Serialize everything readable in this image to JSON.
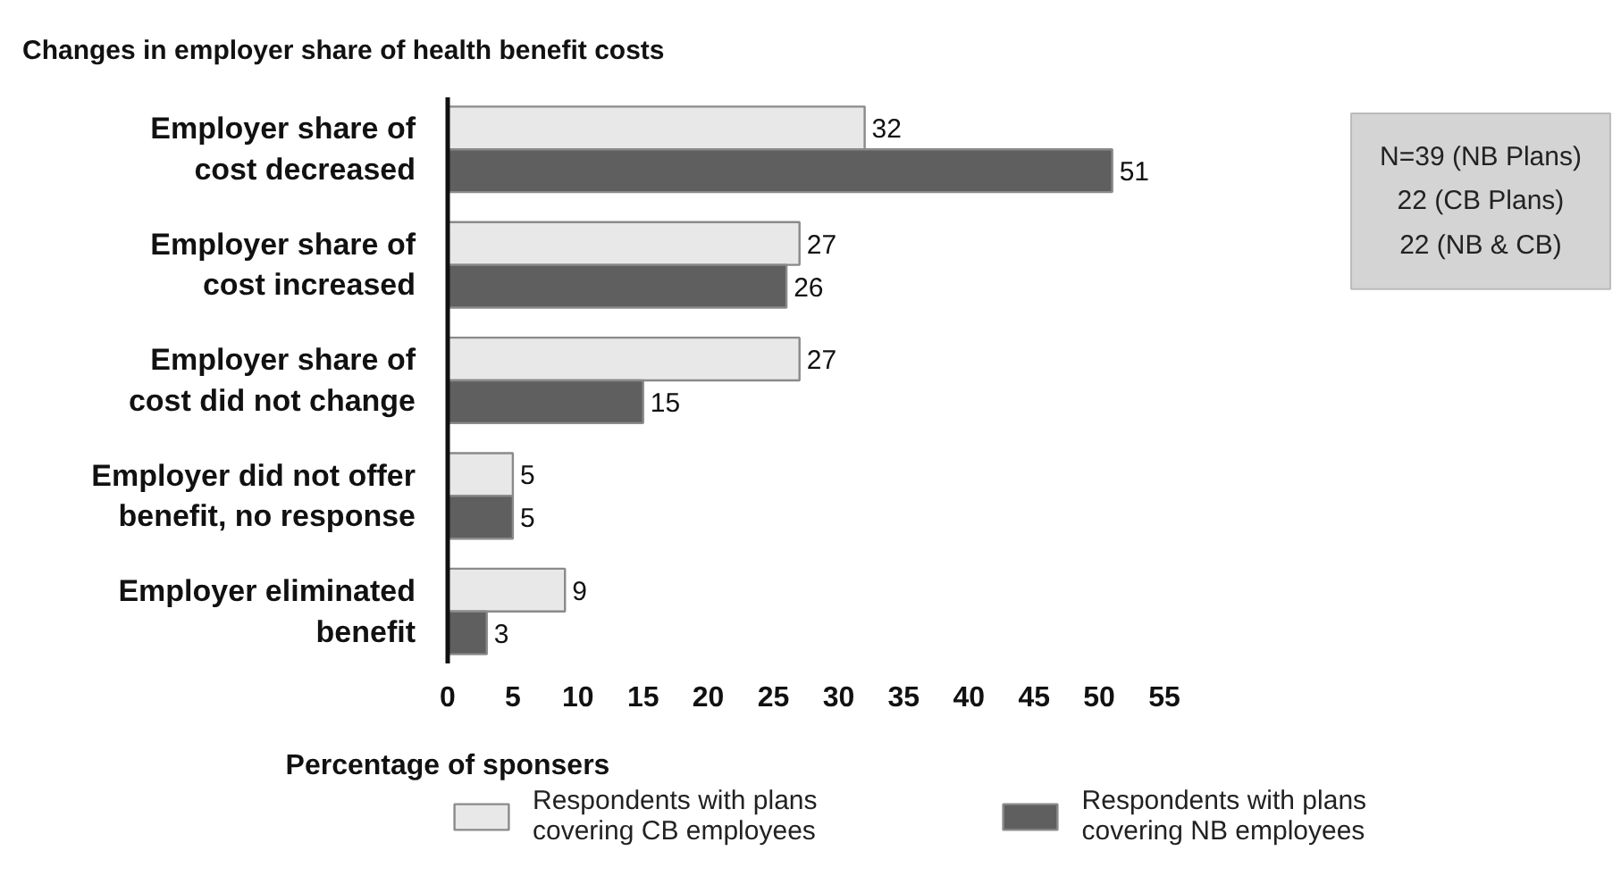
{
  "chart_data": {
    "type": "bar",
    "orientation": "horizontal",
    "title": "Changes in employer share of health benefit costs",
    "xlabel": "Percentage of sponsers",
    "categories": [
      "Employer share of\ncost decreased",
      "Employer share of\ncost increased",
      "Employer share of\ncost did not change",
      "Employer did not offer\nbenefit, no response",
      "Employer eliminated\nbenefit"
    ],
    "series": [
      {
        "name": "Respondents with plans\ncovering CB employees",
        "color": "#e8e8e8",
        "values": [
          32,
          27,
          27,
          5,
          9
        ]
      },
      {
        "name": "Respondents with plans\ncovering NB employees",
        "color": "#5f5f5f",
        "values": [
          51,
          26,
          15,
          5,
          3
        ]
      }
    ],
    "xlim": [
      0,
      55
    ],
    "xticks": [
      0,
      5,
      10,
      15,
      20,
      25,
      30,
      35,
      40,
      45,
      50,
      55
    ],
    "data_labels": true,
    "grid": false,
    "legend": "bottom",
    "annotations": [
      "N=39 (NB Plans)\n22 (CB Plans)\n22 (NB & CB)"
    ]
  }
}
